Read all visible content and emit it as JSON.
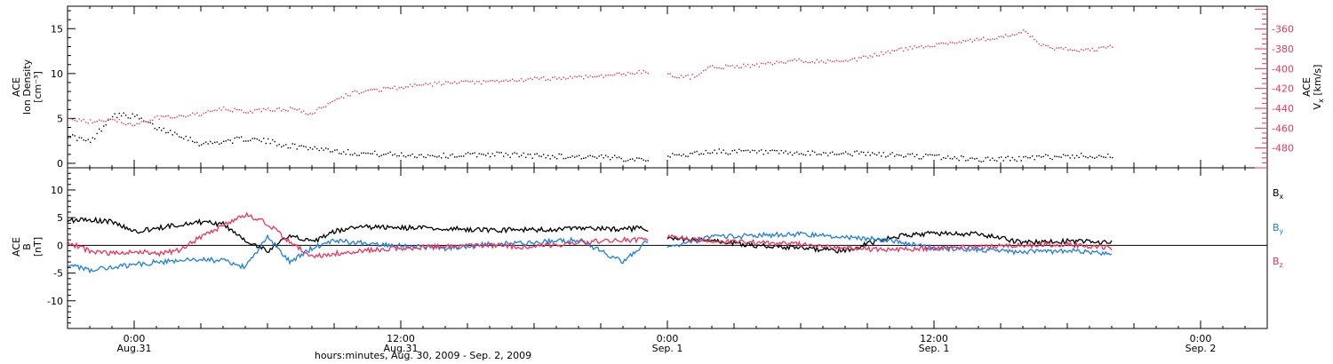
{
  "chart_data": [
    {
      "type": "scatter",
      "panel": "top",
      "title": "",
      "x_axis": {
        "range_start": "2009-08-30T21:00",
        "range_end": "2009-09-02T03:00",
        "major_ticks": [
          "2009-08-31T00:00",
          "2009-08-31T12:00",
          "2009-09-01T00:00",
          "2009-09-01T12:00",
          "2009-09-02T00:00"
        ]
      },
      "y_left": {
        "label_lines": [
          "ACE",
          "Ion Density",
          "[cm⁻³]"
        ],
        "range": [
          -0.5,
          17.5
        ],
        "ticks": [
          0,
          5,
          10,
          15
        ],
        "tick_labels": [
          "0",
          "5",
          "10",
          "15"
        ]
      },
      "y_right": {
        "label_lines": [
          "ACE",
          "V",
          "x",
          "[km/s]"
        ],
        "range": [
          -500,
          -337
        ],
        "ticks": [
          -480,
          -460,
          -440,
          -420,
          -400,
          -380,
          -360
        ],
        "tick_labels": [
          "-480",
          "-460",
          "-440",
          "-420",
          "-400",
          "-380",
          "-360"
        ]
      },
      "series": [
        {
          "axis": "left",
          "color": "#000000",
          "x": [
            "2009-08-30T21:00",
            "2009-08-30T22:00",
            "2009-08-30T23:00",
            "2009-08-31T00:00",
            "2009-08-31T01:00",
            "2009-08-31T02:00",
            "2009-08-31T03:00",
            "2009-08-31T04:00",
            "2009-08-31T05:00",
            "2009-08-31T06:00",
            "2009-08-31T07:00",
            "2009-08-31T08:00",
            "2009-08-31T09:00",
            "2009-08-31T10:00",
            "2009-08-31T12:00",
            "2009-08-31T14:00",
            "2009-08-31T16:00",
            "2009-08-31T18:00",
            "2009-08-31T20:00",
            "2009-08-31T22:00",
            "2009-08-31T23:00",
            "2009-09-01T00:00",
            "2009-09-01T02:00",
            "2009-09-01T04:00",
            "2009-09-01T06:00",
            "2009-09-01T08:00",
            "2009-09-01T10:00",
            "2009-09-01T12:00",
            "2009-09-01T14:00",
            "2009-09-01T16:00",
            "2009-09-01T18:00",
            "2009-09-01T20:00"
          ],
          "y": [
            3.2,
            2.4,
            5.5,
            5.3,
            4.0,
            3.3,
            2.2,
            2.5,
            2.8,
            2.5,
            2.0,
            1.8,
            1.5,
            1.2,
            1.0,
            0.9,
            1.1,
            0.9,
            0.8,
            0.6,
            0.6,
            0.8,
            1.4,
            1.3,
            1.1,
            1.2,
            1.0,
            0.8,
            0.5,
            0.6,
            0.9,
            0.9
          ]
        },
        {
          "axis": "right",
          "color": "#e8365f",
          "x": [
            "2009-08-30T21:00",
            "2009-08-30T22:00",
            "2009-08-30T23:00",
            "2009-08-31T00:00",
            "2009-08-31T01:00",
            "2009-08-31T02:00",
            "2009-08-31T03:00",
            "2009-08-31T04:00",
            "2009-08-31T05:00",
            "2009-08-31T06:00",
            "2009-08-31T07:00",
            "2009-08-31T08:00",
            "2009-08-31T09:00",
            "2009-08-31T10:00",
            "2009-08-31T12:00",
            "2009-08-31T14:00",
            "2009-08-31T16:00",
            "2009-08-31T18:00",
            "2009-08-31T20:00",
            "2009-08-31T22:00",
            "2009-08-31T23:00",
            "2009-09-01T00:00",
            "2009-09-01T01:00",
            "2009-09-01T02:00",
            "2009-09-01T04:00",
            "2009-09-01T06:00",
            "2009-09-01T08:00",
            "2009-09-01T10:00",
            "2009-09-01T12:00",
            "2009-09-01T14:00",
            "2009-09-01T15:00",
            "2009-09-01T16:00",
            "2009-09-01T17:00",
            "2009-09-01T18:00",
            "2009-09-01T19:00",
            "2009-09-01T20:00"
          ],
          "y": [
            -451,
            -453,
            -450,
            -457,
            -449,
            -447,
            -445,
            -440,
            -443,
            -441,
            -440,
            -445,
            -430,
            -423,
            -418,
            -414,
            -413,
            -410,
            -408,
            -405,
            -402,
            -406,
            -408,
            -398,
            -396,
            -391,
            -393,
            -382,
            -375,
            -370,
            -368,
            -362,
            -378,
            -380,
            -381,
            -377
          ]
        }
      ]
    },
    {
      "type": "line",
      "panel": "bottom",
      "title": "",
      "x_axis": {
        "range_start": "2009-08-30T21:00",
        "range_end": "2009-09-02T03:00",
        "major_ticks": [
          "2009-08-31T00:00",
          "2009-08-31T12:00",
          "2009-09-01T00:00",
          "2009-09-01T12:00",
          "2009-09-02T00:00"
        ],
        "tick_labels": [
          {
            "time": "0:00",
            "date": "Aug.31"
          },
          {
            "time": "12:00",
            "date": "Aug.31"
          },
          {
            "time": "0:00",
            "date": "Sep. 1"
          },
          {
            "time": "12:00",
            "date": "Sep. 1"
          },
          {
            "time": "0:00",
            "date": "Sep. 2"
          }
        ],
        "label": "hours:minutes, Aug. 30, 2009 - Sep.  2, 2009"
      },
      "y_left": {
        "label_lines": [
          "ACE",
          "B",
          "[nT]"
        ],
        "range": [
          -15,
          14
        ],
        "ticks": [
          -10,
          -5,
          0,
          5,
          10
        ],
        "tick_labels": [
          "-10",
          "-5",
          "0",
          "5",
          "10"
        ]
      },
      "zero_line": true,
      "legend_placement": "right",
      "series": [
        {
          "name": "B",
          "subscript": "x",
          "color": "#000000",
          "x": [
            "2009-08-30T21:00",
            "2009-08-30T22:00",
            "2009-08-30T23:00",
            "2009-08-31T00:00",
            "2009-08-31T01:00",
            "2009-08-31T02:00",
            "2009-08-31T03:00",
            "2009-08-31T04:00",
            "2009-08-31T05:00",
            "2009-08-31T06:00",
            "2009-08-31T07:00",
            "2009-08-31T08:00",
            "2009-08-31T09:00",
            "2009-08-31T10:00",
            "2009-08-31T12:00",
            "2009-08-31T14:00",
            "2009-08-31T16:00",
            "2009-08-31T18:00",
            "2009-08-31T20:00",
            "2009-08-31T22:00",
            "2009-08-31T23:00",
            "2009-09-01T00:00",
            "2009-09-01T02:00",
            "2009-09-01T04:00",
            "2009-09-01T06:00",
            "2009-09-01T08:00",
            "2009-09-01T10:00",
            "2009-09-01T12:00",
            "2009-09-01T14:00",
            "2009-09-01T16:00",
            "2009-09-01T18:00",
            "2009-09-01T20:00"
          ],
          "y": [
            4.5,
            4.6,
            4.3,
            2.5,
            3.0,
            3.8,
            4.2,
            3.8,
            1.0,
            -1.0,
            2.0,
            0.5,
            2.5,
            3.3,
            3.2,
            3.0,
            2.8,
            2.8,
            3.0,
            3.0,
            3.0,
            1.2,
            0.8,
            0.0,
            -0.5,
            -1.0,
            1.5,
            2.2,
            2.0,
            0.5,
            0.8,
            0.5
          ]
        },
        {
          "name": "B",
          "subscript": "y",
          "color": "#1f7fdf",
          "x": [
            "2009-08-30T21:00",
            "2009-08-30T22:00",
            "2009-08-30T23:00",
            "2009-08-31T00:00",
            "2009-08-31T01:00",
            "2009-08-31T02:00",
            "2009-08-31T03:00",
            "2009-08-31T04:00",
            "2009-08-31T05:00",
            "2009-08-31T06:00",
            "2009-08-31T07:00",
            "2009-08-31T08:00",
            "2009-08-31T09:00",
            "2009-08-31T10:00",
            "2009-08-31T12:00",
            "2009-08-31T14:00",
            "2009-08-31T16:00",
            "2009-08-31T18:00",
            "2009-08-31T20:00",
            "2009-08-31T22:00",
            "2009-08-31T23:00",
            "2009-09-01T00:00",
            "2009-09-01T02:00",
            "2009-09-01T04:00",
            "2009-09-01T06:00",
            "2009-09-01T08:00",
            "2009-09-01T10:00",
            "2009-09-01T12:00",
            "2009-09-01T14:00",
            "2009-09-01T16:00",
            "2009-09-01T18:00",
            "2009-09-01T20:00"
          ],
          "y": [
            -3.5,
            -4.5,
            -4.0,
            -3.5,
            -3.0,
            -2.8,
            -2.5,
            -2.8,
            -4.0,
            1.5,
            -3.0,
            -0.5,
            1.0,
            0.5,
            0.0,
            -0.5,
            0.2,
            0.5,
            1.0,
            -3.0,
            0.5,
            -0.5,
            1.5,
            1.8,
            2.0,
            1.5,
            1.0,
            -0.5,
            -0.8,
            -1.2,
            -1.0,
            -1.5
          ]
        },
        {
          "name": "B",
          "subscript": "z",
          "color": "#e8365f",
          "x": [
            "2009-08-30T21:00",
            "2009-08-30T22:00",
            "2009-08-30T23:00",
            "2009-08-31T00:00",
            "2009-08-31T01:00",
            "2009-08-31T02:00",
            "2009-08-31T03:00",
            "2009-08-31T04:00",
            "2009-08-31T05:00",
            "2009-08-31T06:00",
            "2009-08-31T07:00",
            "2009-08-31T08:00",
            "2009-08-31T09:00",
            "2009-08-31T10:00",
            "2009-08-31T12:00",
            "2009-08-31T14:00",
            "2009-08-31T16:00",
            "2009-08-31T18:00",
            "2009-08-31T20:00",
            "2009-08-31T22:00",
            "2009-08-31T23:00",
            "2009-09-01T00:00",
            "2009-09-01T02:00",
            "2009-09-01T04:00",
            "2009-09-01T06:00",
            "2009-09-01T08:00",
            "2009-09-01T10:00",
            "2009-09-01T12:00",
            "2009-09-01T14:00",
            "2009-09-01T16:00",
            "2009-09-01T18:00",
            "2009-09-01T20:00"
          ],
          "y": [
            0.5,
            -1.0,
            -1.5,
            -1.0,
            -1.5,
            -1.0,
            1.5,
            3.5,
            5.5,
            4.0,
            0.5,
            -2.0,
            -1.5,
            -1.0,
            -0.5,
            -0.2,
            0.0,
            -0.3,
            0.5,
            1.0,
            1.0,
            1.5,
            0.8,
            0.5,
            0.2,
            -0.5,
            -0.8,
            -0.5,
            -0.3,
            0.0,
            0.2,
            -0.5
          ]
        }
      ]
    }
  ]
}
